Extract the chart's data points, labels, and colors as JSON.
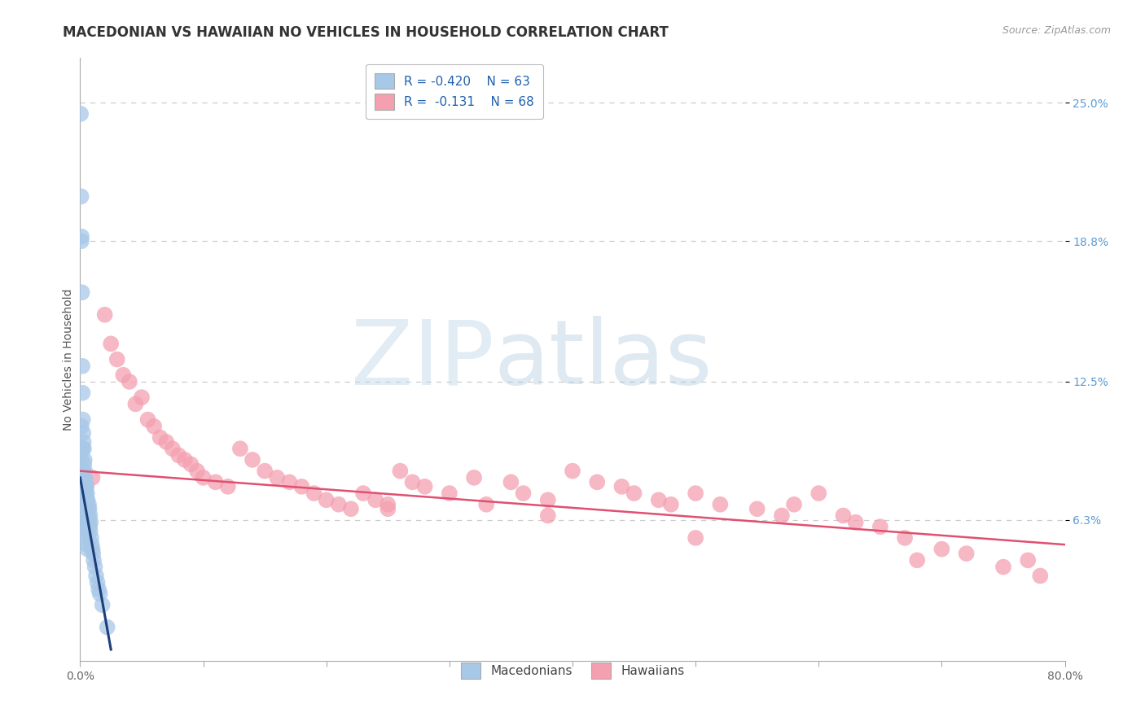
{
  "title": "MACEDONIAN VS HAWAIIAN NO VEHICLES IN HOUSEHOLD CORRELATION CHART",
  "source": "Source: ZipAtlas.com",
  "ylabel": "No Vehicles in Household",
  "xlim": [
    0.0,
    80.0
  ],
  "ylim": [
    0.0,
    27.0
  ],
  "y_tick_vals_right": [
    6.3,
    12.5,
    18.8,
    25.0
  ],
  "y_tick_labels_right": [
    "6.3%",
    "12.5%",
    "18.8%",
    "25.0%"
  ],
  "blue_color": "#A8C8E8",
  "pink_color": "#F4A0B0",
  "blue_line_color": "#1C3F7A",
  "pink_line_color": "#E05070",
  "legend_text_color": "#2060B0",
  "watermark": "ZIPatlas",
  "watermark_color_zip": "#B8CCE0",
  "watermark_color_atlas": "#A0C0D8",
  "background_color": "#FFFFFF",
  "title_fontsize": 12,
  "axis_label_fontsize": 10,
  "tick_fontsize": 10,
  "mac_x": [
    0.05,
    0.08,
    0.1,
    0.1,
    0.12,
    0.12,
    0.14,
    0.15,
    0.15,
    0.16,
    0.18,
    0.18,
    0.2,
    0.2,
    0.22,
    0.22,
    0.22,
    0.25,
    0.25,
    0.28,
    0.28,
    0.3,
    0.3,
    0.32,
    0.32,
    0.35,
    0.35,
    0.38,
    0.4,
    0.4,
    0.42,
    0.45,
    0.45,
    0.48,
    0.5,
    0.5,
    0.52,
    0.55,
    0.55,
    0.58,
    0.6,
    0.6,
    0.65,
    0.68,
    0.7,
    0.72,
    0.75,
    0.78,
    0.8,
    0.82,
    0.85,
    0.9,
    0.95,
    1.0,
    1.05,
    1.1,
    1.2,
    1.3,
    1.4,
    1.5,
    1.6,
    1.8,
    2.2
  ],
  "mac_y": [
    24.5,
    20.8,
    18.8,
    10.5,
    19.0,
    9.0,
    8.5,
    16.5,
    9.5,
    8.2,
    13.2,
    8.0,
    12.0,
    7.5,
    10.8,
    9.5,
    7.0,
    10.2,
    8.5,
    9.8,
    7.2,
    9.5,
    7.0,
    8.8,
    6.5,
    9.0,
    6.2,
    8.5,
    8.2,
    6.0,
    7.8,
    8.0,
    5.8,
    7.5,
    7.8,
    5.5,
    7.2,
    7.5,
    5.2,
    7.0,
    7.2,
    5.0,
    6.8,
    6.5,
    7.0,
    6.2,
    6.8,
    6.0,
    6.5,
    5.8,
    6.2,
    5.5,
    5.2,
    5.0,
    4.8,
    4.5,
    4.2,
    3.8,
    3.5,
    3.2,
    3.0,
    2.5,
    1.5
  ],
  "haw_x": [
    0.5,
    1.0,
    2.0,
    2.5,
    3.0,
    3.5,
    4.0,
    4.5,
    5.0,
    5.5,
    6.0,
    6.5,
    7.0,
    7.5,
    8.0,
    8.5,
    9.0,
    9.5,
    10.0,
    11.0,
    12.0,
    13.0,
    14.0,
    15.0,
    16.0,
    17.0,
    18.0,
    19.0,
    20.0,
    21.0,
    22.0,
    23.0,
    24.0,
    25.0,
    26.0,
    27.0,
    28.0,
    30.0,
    32.0,
    33.0,
    35.0,
    36.0,
    38.0,
    40.0,
    42.0,
    44.0,
    45.0,
    47.0,
    48.0,
    50.0,
    52.0,
    55.0,
    57.0,
    58.0,
    60.0,
    62.0,
    63.0,
    65.0,
    67.0,
    68.0,
    70.0,
    72.0,
    75.0,
    77.0,
    78.0,
    50.0,
    38.0,
    25.0
  ],
  "haw_y": [
    7.8,
    8.2,
    15.5,
    14.2,
    13.5,
    12.8,
    12.5,
    11.5,
    11.8,
    10.8,
    10.5,
    10.0,
    9.8,
    9.5,
    9.2,
    9.0,
    8.8,
    8.5,
    8.2,
    8.0,
    7.8,
    9.5,
    9.0,
    8.5,
    8.2,
    8.0,
    7.8,
    7.5,
    7.2,
    7.0,
    6.8,
    7.5,
    7.2,
    7.0,
    8.5,
    8.0,
    7.8,
    7.5,
    8.2,
    7.0,
    8.0,
    7.5,
    7.2,
    8.5,
    8.0,
    7.8,
    7.5,
    7.2,
    7.0,
    7.5,
    7.0,
    6.8,
    6.5,
    7.0,
    7.5,
    6.5,
    6.2,
    6.0,
    5.5,
    4.5,
    5.0,
    4.8,
    4.2,
    4.5,
    3.8,
    5.5,
    6.5,
    6.8
  ],
  "mac_trend_start_x": 0.0,
  "mac_trend_end_x": 2.5,
  "mac_trend_start_y": 8.2,
  "mac_trend_end_y": 0.5,
  "haw_trend_start_x": 0.0,
  "haw_trend_end_x": 80.0,
  "haw_trend_start_y": 8.5,
  "haw_trend_end_y": 5.2
}
